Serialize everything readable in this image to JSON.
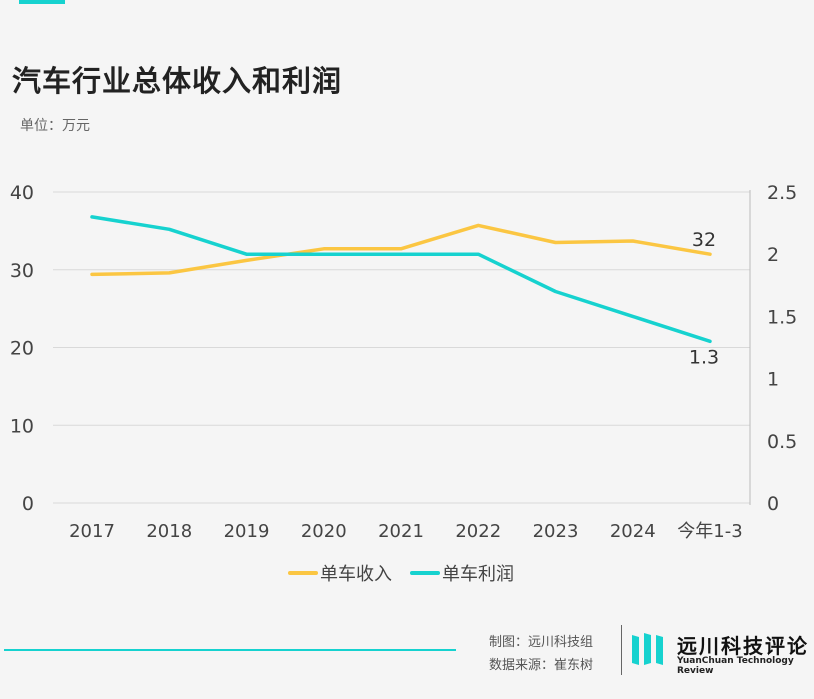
{
  "header": {
    "title": "汽车行业总体收入和利润",
    "unit": "单位：万元"
  },
  "footer": {
    "credit_line1": "制图：远川科技组",
    "credit_line2": "数据来源：崔东树",
    "brand_cn": "远川科技评论",
    "brand_en": "YuanChuan Technology Review"
  },
  "colors": {
    "revenue": "#fbc642",
    "profit": "#16d2cf",
    "accent": "#16d2cf",
    "grid": "#d9d9d9",
    "text": "#444444"
  },
  "chart_data": {
    "type": "line",
    "categories": [
      "2017",
      "2018",
      "2019",
      "2020",
      "2021",
      "2022",
      "2023",
      "2024",
      "今年1-3"
    ],
    "left_axis": {
      "ticks": [
        "0",
        "10",
        "20",
        "30",
        "40"
      ],
      "ylim": [
        0,
        40
      ]
    },
    "right_axis": {
      "ticks": [
        "0",
        "0.5",
        "1",
        "1.5",
        "2",
        "2.5"
      ],
      "ylim": [
        0,
        2.5
      ]
    },
    "grid": true,
    "legend_position": "bottom",
    "series": [
      {
        "name": "单车收入",
        "axis": "left",
        "color": "#fbc642",
        "values": [
          29.4,
          29.6,
          31.2,
          32.7,
          32.7,
          35.7,
          33.5,
          33.7,
          32
        ],
        "end_label": "32"
      },
      {
        "name": "单车利润",
        "axis": "right",
        "color": "#16d2cf",
        "values": [
          2.3,
          2.2,
          2.0,
          2.0,
          2.0,
          2.0,
          1.7,
          1.5,
          1.3
        ],
        "end_label": "1.3"
      }
    ]
  }
}
